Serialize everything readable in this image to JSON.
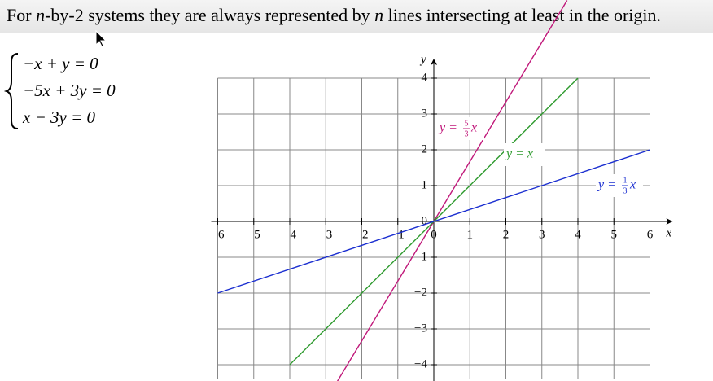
{
  "heading": {
    "parts": [
      "For ",
      "n",
      "-by-2 systems they are always represented by ",
      "n",
      " lines intersecting at least in the origin."
    ]
  },
  "equations": [
    "−x + y = 0",
    "−5x + 3y = 0",
    "x − 3y = 0"
  ],
  "chart_data": {
    "type": "line",
    "xlabel": "x",
    "ylabel": "y",
    "xlim": [
      -6,
      6
    ],
    "ylim": [
      -4.4,
      4
    ],
    "xticks": [
      {
        "value": -6,
        "label": "−6"
      },
      {
        "value": -5,
        "label": "−5"
      },
      {
        "value": -4,
        "label": "−4"
      },
      {
        "value": -3,
        "label": "−3"
      },
      {
        "value": -2,
        "label": "−2"
      },
      {
        "value": -1,
        "label": "−1"
      },
      0,
      1,
      2,
      3,
      4,
      5,
      6
    ],
    "yticks": [
      {
        "value": -4,
        "label": "−4"
      },
      {
        "value": -3,
        "label": "−3"
      },
      {
        "value": -2,
        "label": "−2"
      },
      {
        "value": -1,
        "label": "−1"
      },
      0,
      1,
      2,
      3,
      4
    ],
    "grid": true,
    "series": [
      {
        "color": "#c0187a",
        "x": [
          -2.7,
          3.7
        ],
        "values": [
          -4.5,
          6.17
        ],
        "label": {
          "lhs": "y =",
          "num": "5",
          "den": "3",
          "var": "x"
        }
      },
      {
        "color": "#2e9a2e",
        "x": [
          -4,
          4
        ],
        "values": [
          -4,
          4
        ],
        "label": {
          "lhs": "y = x"
        }
      },
      {
        "color": "#1a2ed0",
        "x": [
          -6,
          6
        ],
        "values": [
          -2,
          2
        ],
        "label": {
          "lhs": "y =",
          "num": "1",
          "den": "3",
          "var": "x"
        }
      }
    ]
  }
}
